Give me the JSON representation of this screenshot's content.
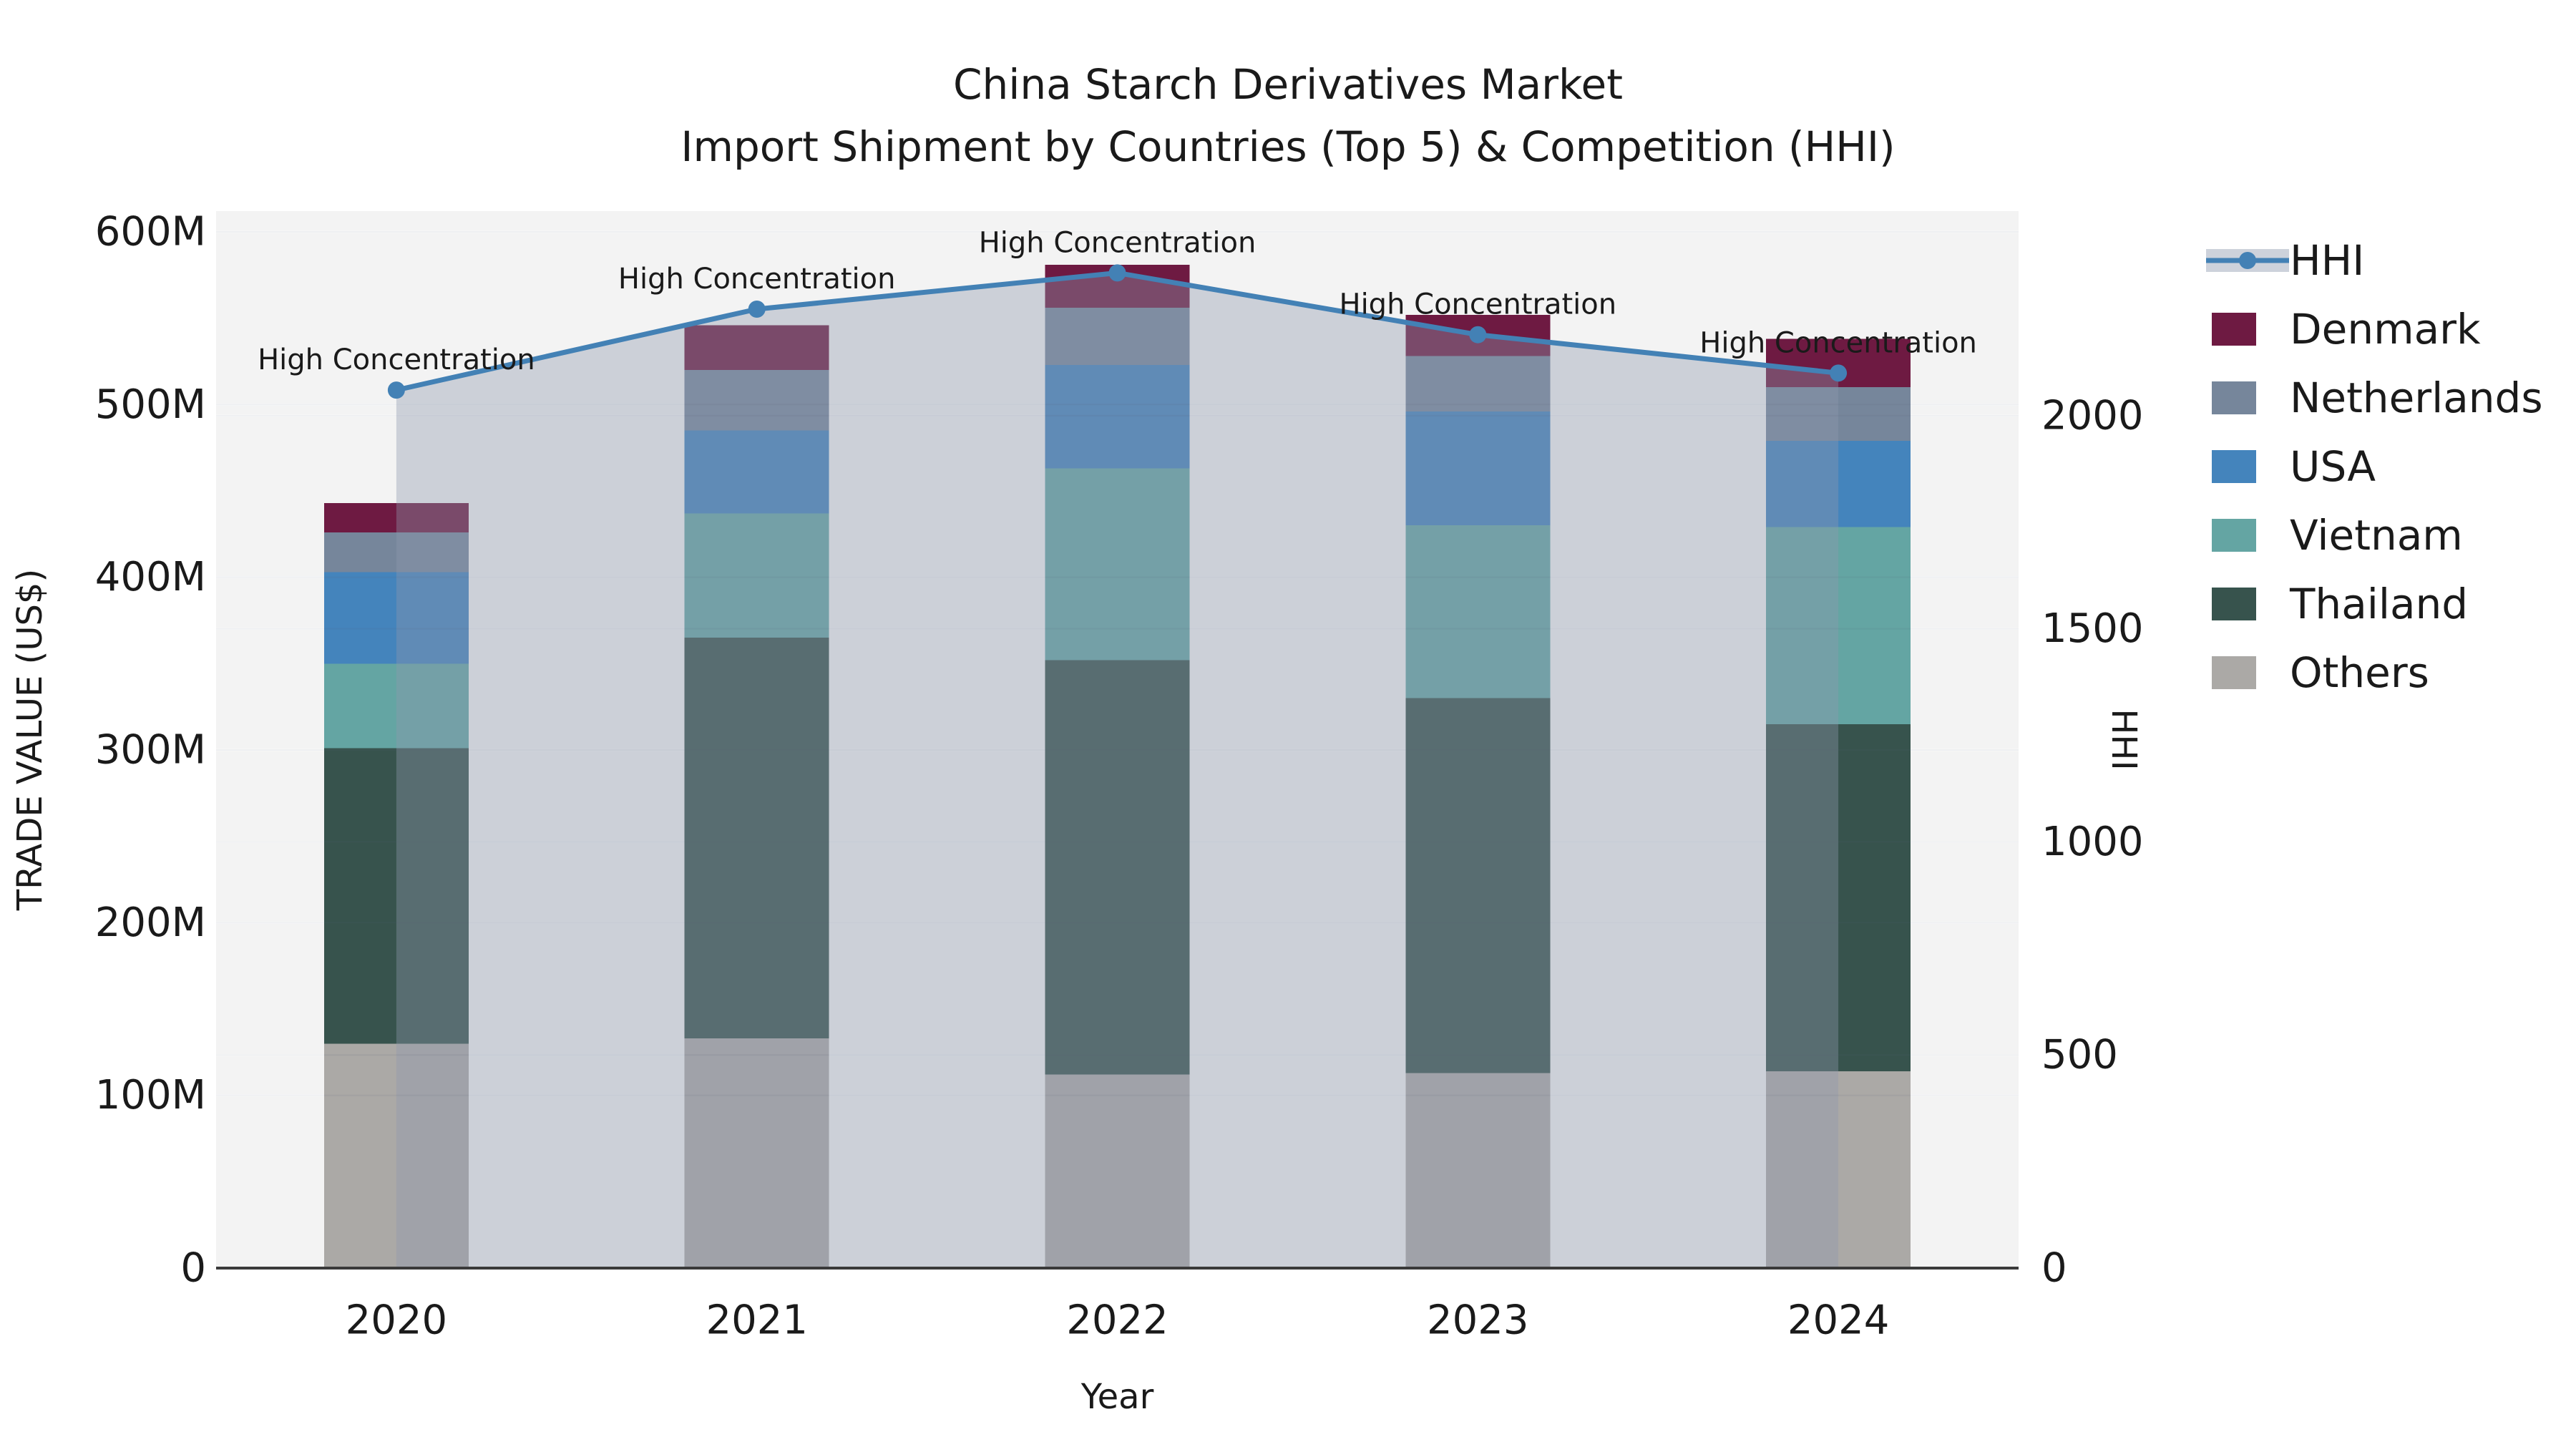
{
  "page": {
    "title": "China Starch Derivatives Market — Import Shipment by Countries (Top 5) & Competition (HHI)"
  },
  "chart_data": {
    "type": "bar+line",
    "title_lines": [
      "China Starch Derivatives Market",
      "Import Shipment by Countries (Top 5) & Competition (HHI)"
    ],
    "xlabel": "Year",
    "ylabel_left": "TRADE VALUE (US$)",
    "ylabel_right": "HHI",
    "categories": [
      "2020",
      "2021",
      "2022",
      "2023",
      "2024"
    ],
    "unit": "US$ millions",
    "stack_order_bottom_to_top": [
      "Others",
      "Thailand",
      "Vietnam",
      "USA",
      "Netherlands",
      "Denmark"
    ],
    "series": [
      {
        "name": "Others",
        "color": "#aba9a6",
        "values": [
          130,
          133,
          112,
          113,
          114
        ]
      },
      {
        "name": "Thailand",
        "color": "#37534d",
        "values": [
          171,
          232,
          240,
          217,
          201
        ]
      },
      {
        "name": "Vietnam",
        "color": "#64a5a3",
        "values": [
          49,
          72,
          111,
          100,
          114
        ]
      },
      {
        "name": "USA",
        "color": "#4484bc",
        "values": [
          53,
          48,
          60,
          66,
          50
        ]
      },
      {
        "name": "Netherlands",
        "color": "#76869b",
        "values": [
          23,
          35,
          33,
          32,
          31
        ]
      },
      {
        "name": "Denmark",
        "color": "#6e1a42",
        "values": [
          17,
          26,
          25,
          24,
          28
        ]
      }
    ],
    "bar_totals": [
      443,
      546,
      581,
      552,
      538
    ],
    "line_series": {
      "name": "HHI",
      "color": "#4381b5",
      "values": [
        2060,
        2250,
        2335,
        2190,
        2100
      ],
      "marker": "circle",
      "area_fill": "#8e99ad",
      "area_opacity": 0.38,
      "legend_band_color": "#cdd2db"
    },
    "annotations": [
      {
        "category": "2020",
        "text": "High Concentration"
      },
      {
        "category": "2021",
        "text": "High Concentration"
      },
      {
        "category": "2022",
        "text": "High Concentration"
      },
      {
        "category": "2023",
        "text": "High Concentration"
      },
      {
        "category": "2024",
        "text": "High Concentration"
      }
    ],
    "axes": {
      "left": {
        "max": 612,
        "ticks": [
          0,
          100,
          200,
          300,
          400,
          500,
          600
        ],
        "tick_labels": [
          "0",
          "100M",
          "200M",
          "300M",
          "400M",
          "500M",
          "600M"
        ]
      },
      "right": {
        "max": 2480,
        "ticks": [
          0,
          500,
          1000,
          1500,
          2000
        ],
        "tick_labels": [
          "0",
          "500",
          "1000",
          "1500",
          "2000"
        ]
      }
    },
    "legend": [
      "HHI",
      "Denmark",
      "Netherlands",
      "USA",
      "Vietnam",
      "Thailand",
      "Others"
    ],
    "legend_position": "right",
    "grid": true,
    "plot_bg": "#f3f3f3",
    "fig_bg": "#ffffff",
    "gridline_color": "#ffffff",
    "spine_color": "#3a3a3a",
    "text_color": "#1a1a1a"
  }
}
